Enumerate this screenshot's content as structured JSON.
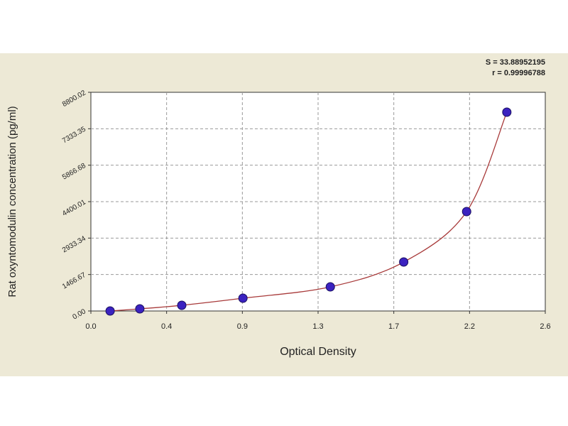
{
  "chart_data": {
    "type": "scatter",
    "xlabel": "Optical Density",
    "ylabel": "Rat oxyntomodulin concentration (pg/ml)",
    "annotations": [
      "S = 33.88952195",
      "r = 0.99996788"
    ],
    "x": [
      0.11,
      0.28,
      0.52,
      0.87,
      1.37,
      1.79,
      2.15,
      2.38
    ],
    "series": [
      {
        "color": "#3b22c0",
        "line_color": "#a83a3a",
        "values": [
          0,
          86,
          229,
          514,
          971,
          1971,
          4000,
          8000
        ]
      }
    ],
    "xlim": [
      0,
      2.6
    ],
    "xticks": [
      {
        "value": 0,
        "label": "0.0"
      },
      {
        "value": 0.4333,
        "label": "0.4"
      },
      {
        "value": 0.8667,
        "label": "0.9"
      },
      {
        "value": 1.3,
        "label": "1.3"
      },
      {
        "value": 1.7333,
        "label": "1.7"
      },
      {
        "value": 2.1667,
        "label": "2.2"
      },
      {
        "value": 2.6,
        "label": "2.6"
      }
    ],
    "ylim": [
      0,
      8800.02
    ],
    "yticks": [
      {
        "value": 0,
        "label": "0.00"
      },
      1466.67,
      2933.34,
      4400.01,
      5866.68,
      7333.35,
      8800.02
    ],
    "grid": true
  }
}
